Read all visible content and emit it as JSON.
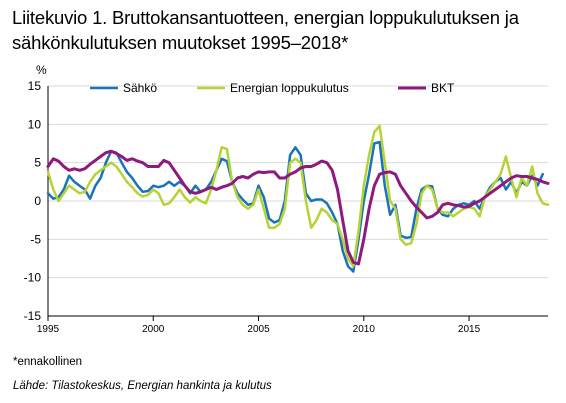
{
  "figure": {
    "title": "Liitekuvio 1. Bruttokansantuotteen, energian loppukulutuksen ja sähkönkulutuksen muutokset 1995–2018*",
    "footnote": "*ennakollinen",
    "source": "Lähde: Tilastokeskus, Energian hankinta ja kulutus"
  },
  "chart_data": {
    "type": "line",
    "ylabel": "%",
    "ylim": [
      -15,
      15
    ],
    "yticks": [
      15,
      10,
      5,
      0,
      -5,
      -10,
      -15
    ],
    "xlim": [
      1995,
      2018.75
    ],
    "xticks": [
      1995,
      2000,
      2005,
      2010,
      2015
    ],
    "grid": "horizontal",
    "legend_position": "top",
    "series": [
      {
        "name": "Sähkö",
        "color": "#1a73b8",
        "points": [
          [
            1995,
            1.0
          ],
          [
            1995.25,
            0.3
          ],
          [
            1995.5,
            0.5
          ],
          [
            1995.75,
            1.5
          ],
          [
            1996,
            3.3
          ],
          [
            1996.25,
            2.5
          ],
          [
            1996.5,
            2.0
          ],
          [
            1996.75,
            1.5
          ],
          [
            1997,
            0.3
          ],
          [
            1997.25,
            2.0
          ],
          [
            1997.5,
            3.0
          ],
          [
            1997.75,
            5.0
          ],
          [
            1998,
            6.5
          ],
          [
            1998.25,
            6.3
          ],
          [
            1998.5,
            5.0
          ],
          [
            1998.75,
            3.8
          ],
          [
            1999,
            3.0
          ],
          [
            1999.25,
            2.0
          ],
          [
            1999.5,
            1.2
          ],
          [
            1999.75,
            1.3
          ],
          [
            2000,
            2.0
          ],
          [
            2000.25,
            1.8
          ],
          [
            2000.5,
            2.0
          ],
          [
            2000.75,
            2.5
          ],
          [
            2001,
            2.0
          ],
          [
            2001.25,
            2.5
          ],
          [
            2001.5,
            2.0
          ],
          [
            2001.75,
            1.0
          ],
          [
            2002,
            2.0
          ],
          [
            2002.25,
            1.2
          ],
          [
            2002.5,
            1.5
          ],
          [
            2002.75,
            2.5
          ],
          [
            2003,
            4.0
          ],
          [
            2003.25,
            5.5
          ],
          [
            2003.5,
            5.2
          ],
          [
            2003.75,
            2.5
          ],
          [
            2004,
            1.0
          ],
          [
            2004.25,
            0.2
          ],
          [
            2004.5,
            -0.5
          ],
          [
            2004.75,
            -0.3
          ],
          [
            2005,
            2.0
          ],
          [
            2005.25,
            0.5
          ],
          [
            2005.5,
            -2.3
          ],
          [
            2005.75,
            -2.8
          ],
          [
            2006,
            -2.5
          ],
          [
            2006.25,
            0.0
          ],
          [
            2006.5,
            6.0
          ],
          [
            2006.75,
            7.0
          ],
          [
            2007,
            6.0
          ],
          [
            2007.25,
            1.0
          ],
          [
            2007.5,
            0.0
          ],
          [
            2007.75,
            0.2
          ],
          [
            2008,
            0.2
          ],
          [
            2008.25,
            -0.3
          ],
          [
            2008.5,
            -1.5
          ],
          [
            2008.75,
            -3.0
          ],
          [
            2009,
            -6.5
          ],
          [
            2009.25,
            -8.5
          ],
          [
            2009.5,
            -9.2
          ],
          [
            2009.75,
            -5.0
          ],
          [
            2010,
            0.0
          ],
          [
            2010.25,
            3.5
          ],
          [
            2010.5,
            7.5
          ],
          [
            2010.75,
            7.7
          ],
          [
            2011,
            2.0
          ],
          [
            2011.25,
            -1.8
          ],
          [
            2011.5,
            -0.5
          ],
          [
            2011.75,
            -4.5
          ],
          [
            2012,
            -4.8
          ],
          [
            2012.25,
            -4.7
          ],
          [
            2012.5,
            -1.0
          ],
          [
            2012.75,
            1.5
          ],
          [
            2013,
            2.0
          ],
          [
            2013.25,
            1.9
          ],
          [
            2013.5,
            -1.0
          ],
          [
            2013.75,
            -1.8
          ],
          [
            2014,
            -2.0
          ],
          [
            2014.25,
            -1.0
          ],
          [
            2014.5,
            -0.5
          ],
          [
            2014.75,
            -0.3
          ],
          [
            2015,
            -0.5
          ],
          [
            2015.25,
            0.0
          ],
          [
            2015.5,
            -1.0
          ],
          [
            2015.75,
            0.5
          ],
          [
            2016,
            1.8
          ],
          [
            2016.25,
            2.5
          ],
          [
            2016.5,
            3.0
          ],
          [
            2016.75,
            1.5
          ],
          [
            2017,
            2.5
          ],
          [
            2017.25,
            1.0
          ],
          [
            2017.5,
            2.5
          ],
          [
            2017.75,
            2.0
          ],
          [
            2018,
            3.3
          ],
          [
            2018.25,
            2.0
          ],
          [
            2018.5,
            3.5
          ]
        ]
      },
      {
        "name": "Energian loppukulutus",
        "color": "#b5d334",
        "points": [
          [
            1995,
            3.8
          ],
          [
            1995.25,
            1.5
          ],
          [
            1995.5,
            0.0
          ],
          [
            1995.75,
            1.0
          ],
          [
            1996,
            2.0
          ],
          [
            1996.25,
            1.5
          ],
          [
            1996.5,
            1.0
          ],
          [
            1996.75,
            1.2
          ],
          [
            1997,
            2.5
          ],
          [
            1997.25,
            3.5
          ],
          [
            1997.5,
            4.0
          ],
          [
            1997.75,
            4.5
          ],
          [
            1998,
            5.0
          ],
          [
            1998.25,
            4.5
          ],
          [
            1998.5,
            3.5
          ],
          [
            1998.75,
            2.5
          ],
          [
            1999,
            1.8
          ],
          [
            1999.25,
            1.0
          ],
          [
            1999.5,
            0.6
          ],
          [
            1999.75,
            0.8
          ],
          [
            2000,
            1.5
          ],
          [
            2000.25,
            1.0
          ],
          [
            2000.5,
            -0.5
          ],
          [
            2000.75,
            -0.3
          ],
          [
            2001,
            0.5
          ],
          [
            2001.25,
            1.5
          ],
          [
            2001.5,
            0.5
          ],
          [
            2001.75,
            -0.2
          ],
          [
            2002,
            0.5
          ],
          [
            2002.25,
            0.0
          ],
          [
            2002.5,
            -0.3
          ],
          [
            2002.75,
            1.5
          ],
          [
            2003,
            4.0
          ],
          [
            2003.25,
            7.0
          ],
          [
            2003.5,
            6.8
          ],
          [
            2003.75,
            2.5
          ],
          [
            2004,
            0.5
          ],
          [
            2004.25,
            -0.5
          ],
          [
            2004.5,
            -1.0
          ],
          [
            2004.75,
            -0.5
          ],
          [
            2005,
            1.5
          ],
          [
            2005.25,
            -1.0
          ],
          [
            2005.5,
            -3.5
          ],
          [
            2005.75,
            -3.5
          ],
          [
            2006,
            -3.0
          ],
          [
            2006.25,
            -1.0
          ],
          [
            2006.5,
            5.0
          ],
          [
            2006.75,
            5.5
          ],
          [
            2007,
            5.0
          ],
          [
            2007.25,
            0.0
          ],
          [
            2007.5,
            -3.5
          ],
          [
            2007.75,
            -2.5
          ],
          [
            2008,
            -1.0
          ],
          [
            2008.25,
            -1.5
          ],
          [
            2008.5,
            -2.5
          ],
          [
            2008.75,
            -3.0
          ],
          [
            2009,
            -5.0
          ],
          [
            2009.25,
            -7.5
          ],
          [
            2009.5,
            -8.5
          ],
          [
            2009.75,
            -4.0
          ],
          [
            2010,
            2.0
          ],
          [
            2010.25,
            6.0
          ],
          [
            2010.5,
            9.0
          ],
          [
            2010.75,
            9.8
          ],
          [
            2011,
            5.0
          ],
          [
            2011.25,
            0.0
          ],
          [
            2011.5,
            -1.0
          ],
          [
            2011.75,
            -5.0
          ],
          [
            2012,
            -5.7
          ],
          [
            2012.25,
            -5.5
          ],
          [
            2012.5,
            -3.0
          ],
          [
            2012.75,
            1.0
          ],
          [
            2013,
            2.0
          ],
          [
            2013.25,
            1.5
          ],
          [
            2013.5,
            -1.0
          ],
          [
            2013.75,
            -1.5
          ],
          [
            2014,
            -1.5
          ],
          [
            2014.25,
            -2.0
          ],
          [
            2014.5,
            -1.5
          ],
          [
            2014.75,
            -1.0
          ],
          [
            2015,
            -0.8
          ],
          [
            2015.25,
            -1.0
          ],
          [
            2015.5,
            -2.0
          ],
          [
            2015.75,
            0.5
          ],
          [
            2016,
            1.5
          ],
          [
            2016.25,
            2.5
          ],
          [
            2016.5,
            3.5
          ],
          [
            2016.75,
            5.8
          ],
          [
            2017,
            3.0
          ],
          [
            2017.25,
            0.5
          ],
          [
            2017.5,
            3.0
          ],
          [
            2017.75,
            2.0
          ],
          [
            2018,
            4.5
          ],
          [
            2018.25,
            1.0
          ],
          [
            2018.5,
            -0.3
          ],
          [
            2018.75,
            -0.5
          ]
        ]
      },
      {
        "name": "BKT",
        "color": "#8e1a7e",
        "points": [
          [
            1995,
            4.5
          ],
          [
            1995.25,
            5.5
          ],
          [
            1995.5,
            5.2
          ],
          [
            1995.75,
            4.5
          ],
          [
            1996,
            4.0
          ],
          [
            1996.25,
            4.2
          ],
          [
            1996.5,
            4.0
          ],
          [
            1996.75,
            4.2
          ],
          [
            1997,
            4.8
          ],
          [
            1997.25,
            5.3
          ],
          [
            1997.5,
            5.8
          ],
          [
            1997.75,
            6.3
          ],
          [
            1998,
            6.5
          ],
          [
            1998.25,
            6.2
          ],
          [
            1998.5,
            5.8
          ],
          [
            1998.75,
            5.3
          ],
          [
            1999,
            5.5
          ],
          [
            1999.25,
            5.2
          ],
          [
            1999.5,
            5.0
          ],
          [
            1999.75,
            4.5
          ],
          [
            2000,
            4.5
          ],
          [
            2000.25,
            4.5
          ],
          [
            2000.5,
            5.3
          ],
          [
            2000.75,
            5.0
          ],
          [
            2001,
            4.0
          ],
          [
            2001.25,
            3.0
          ],
          [
            2001.5,
            2.0
          ],
          [
            2001.75,
            1.2
          ],
          [
            2002,
            1.0
          ],
          [
            2002.25,
            1.2
          ],
          [
            2002.5,
            1.5
          ],
          [
            2002.75,
            1.8
          ],
          [
            2003,
            1.5
          ],
          [
            2003.25,
            1.8
          ],
          [
            2003.5,
            2.0
          ],
          [
            2003.75,
            2.3
          ],
          [
            2004,
            3.0
          ],
          [
            2004.25,
            3.2
          ],
          [
            2004.5,
            3.0
          ],
          [
            2004.75,
            3.5
          ],
          [
            2005,
            3.8
          ],
          [
            2005.25,
            3.7
          ],
          [
            2005.5,
            3.8
          ],
          [
            2005.75,
            3.8
          ],
          [
            2006,
            3.0
          ],
          [
            2006.25,
            3.0
          ],
          [
            2006.5,
            3.5
          ],
          [
            2006.75,
            3.8
          ],
          [
            2007,
            4.3
          ],
          [
            2007.25,
            4.5
          ],
          [
            2007.5,
            4.5
          ],
          [
            2007.75,
            4.8
          ],
          [
            2008,
            5.2
          ],
          [
            2008.25,
            5.0
          ],
          [
            2008.5,
            4.0
          ],
          [
            2008.75,
            1.5
          ],
          [
            2009,
            -2.5
          ],
          [
            2009.25,
            -6.5
          ],
          [
            2009.5,
            -8.0
          ],
          [
            2009.75,
            -8.2
          ],
          [
            2010,
            -5.0
          ],
          [
            2010.25,
            -1.0
          ],
          [
            2010.5,
            2.0
          ],
          [
            2010.75,
            3.5
          ],
          [
            2011,
            3.7
          ],
          [
            2011.25,
            3.8
          ],
          [
            2011.5,
            3.5
          ],
          [
            2011.75,
            2.0
          ],
          [
            2012,
            1.0
          ],
          [
            2012.25,
            0.0
          ],
          [
            2012.5,
            -0.8
          ],
          [
            2012.75,
            -1.5
          ],
          [
            2013,
            -2.2
          ],
          [
            2013.25,
            -2.0
          ],
          [
            2013.5,
            -1.5
          ],
          [
            2013.75,
            -0.5
          ],
          [
            2014,
            -0.3
          ],
          [
            2014.25,
            -0.5
          ],
          [
            2014.5,
            -0.6
          ],
          [
            2014.75,
            -0.8
          ],
          [
            2015,
            -0.7
          ],
          [
            2015.25,
            -0.3
          ],
          [
            2015.5,
            0.0
          ],
          [
            2015.75,
            0.5
          ],
          [
            2016,
            1.0
          ],
          [
            2016.25,
            1.5
          ],
          [
            2016.5,
            2.0
          ],
          [
            2016.75,
            2.5
          ],
          [
            2017,
            3.0
          ],
          [
            2017.25,
            3.3
          ],
          [
            2017.5,
            3.2
          ],
          [
            2017.75,
            3.2
          ],
          [
            2018,
            3.0
          ],
          [
            2018.25,
            2.8
          ],
          [
            2018.5,
            2.5
          ],
          [
            2018.75,
            2.3
          ]
        ]
      }
    ]
  }
}
